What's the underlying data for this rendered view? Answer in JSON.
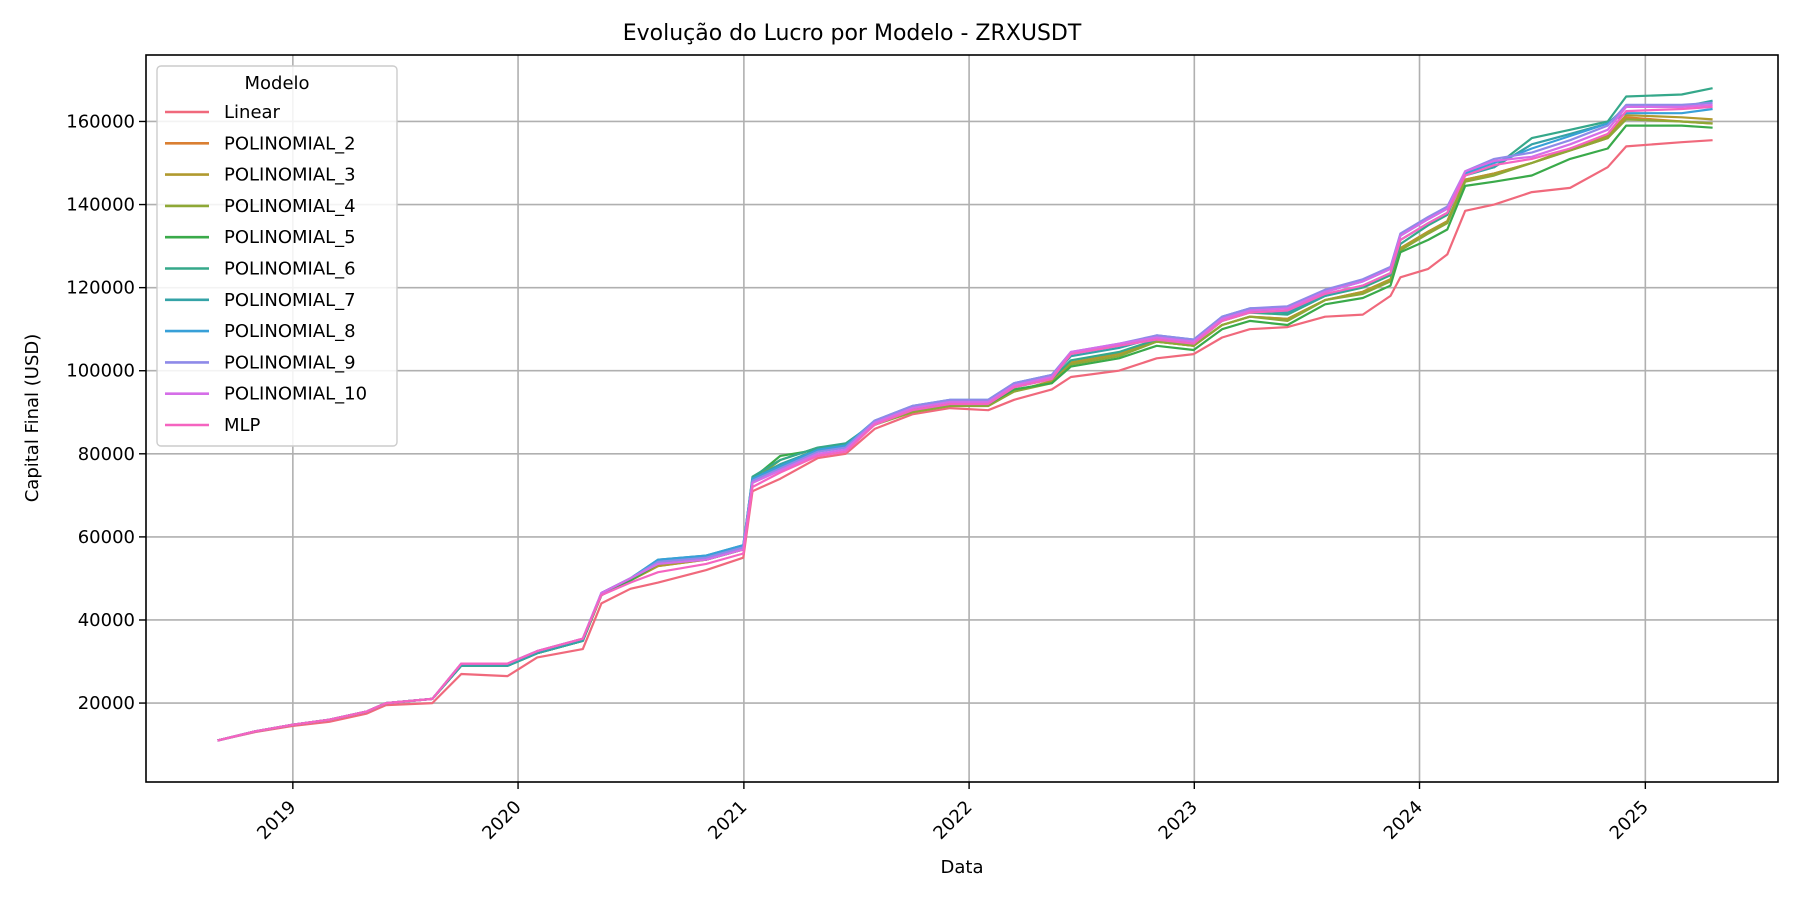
{
  "chart_data": {
    "type": "line",
    "title": "Evolução do Lucro por Modelo - ZRXUSDT",
    "xlabel": "Data",
    "ylabel": "Capital Final (USD)",
    "legend_title": "Modelo",
    "legend_position": "top-left",
    "grid": true,
    "ylim": [
      1000,
      176000
    ],
    "xlim": [
      "2018-05-08",
      "2025-08-04"
    ],
    "x_ticks": [
      "2019",
      "2020",
      "2021",
      "2022",
      "2023",
      "2024",
      "2025"
    ],
    "y_ticks": [
      20000,
      40000,
      60000,
      80000,
      100000,
      120000,
      140000,
      160000
    ],
    "x": [
      "2018-09-01",
      "2018-11-01",
      "2019-01-01",
      "2019-03-01",
      "2019-05-01",
      "2019-06-01",
      "2019-08-15",
      "2019-10-01",
      "2019-12-15",
      "2020-02-01",
      "2020-04-15",
      "2020-05-15",
      "2020-07-01",
      "2020-08-15",
      "2020-11-01",
      "2020-12-31",
      "2021-01-15",
      "2021-03-01",
      "2021-05-01",
      "2021-06-15",
      "2021-08-01",
      "2021-10-01",
      "2021-12-01",
      "2022-02-01",
      "2022-03-15",
      "2022-05-15",
      "2022-06-15",
      "2022-09-01",
      "2022-11-01",
      "2022-12-31",
      "2023-02-15",
      "2023-04-01",
      "2023-06-01",
      "2023-08-01",
      "2023-10-01",
      "2023-11-15",
      "2023-12-01",
      "2024-01-15",
      "2024-02-15",
      "2024-03-15",
      "2024-05-01",
      "2024-07-01",
      "2024-09-01",
      "2024-11-01",
      "2024-12-01",
      "2025-03-01",
      "2025-04-20"
    ],
    "series": [
      {
        "name": "Linear",
        "color": "#f0697c",
        "values": [
          11000,
          13000,
          14500,
          15500,
          17500,
          19500,
          20000,
          27000,
          26500,
          31000,
          33000,
          44000,
          47500,
          49000,
          52000,
          55000,
          71000,
          74000,
          79000,
          80000,
          86000,
          89500,
          91000,
          90500,
          93000,
          95500,
          98500,
          100000,
          103000,
          104000,
          108000,
          110000,
          110500,
          113000,
          113500,
          118000,
          122500,
          124500,
          128000,
          138500,
          140000,
          143000,
          144000,
          149000,
          154000,
          155000,
          155500
        ]
      },
      {
        "name": "POLINOMIAL_2",
        "color": "#da7f32",
        "values": [
          11000,
          13200,
          14800,
          16000,
          18000,
          20000,
          21000,
          29000,
          29000,
          32000,
          35000,
          46000,
          49500,
          53000,
          54500,
          57000,
          73000,
          77000,
          81000,
          82000,
          87000,
          90500,
          92000,
          92000,
          95000,
          97500,
          102000,
          104000,
          107000,
          106000,
          111000,
          113000,
          112500,
          117000,
          119000,
          122000,
          129500,
          133500,
          136000,
          146000,
          147500,
          150000,
          153000,
          156000,
          161000,
          160000,
          159500
        ]
      },
      {
        "name": "POLINOMIAL_3",
        "color": "#b09a2f",
        "values": [
          11000,
          13200,
          14800,
          16000,
          18000,
          20000,
          21000,
          29000,
          29000,
          32000,
          35000,
          46000,
          49500,
          53000,
          54500,
          57000,
          73000,
          77000,
          81000,
          82000,
          87000,
          90500,
          92000,
          92000,
          95000,
          97500,
          102000,
          104000,
          107000,
          106000,
          111000,
          113000,
          112500,
          117000,
          119000,
          122000,
          129500,
          133500,
          136000,
          146000,
          147500,
          150000,
          153500,
          156500,
          161500,
          161000,
          160500
        ]
      },
      {
        "name": "POLINOMIAL_4",
        "color": "#8ea836",
        "values": [
          11000,
          13200,
          14800,
          16000,
          18000,
          20000,
          21000,
          29000,
          29000,
          32000,
          35000,
          46000,
          49500,
          53500,
          54500,
          57000,
          73500,
          78500,
          81500,
          82000,
          87000,
          90000,
          91500,
          91500,
          95000,
          97000,
          101500,
          103500,
          107000,
          106000,
          111000,
          113000,
          112000,
          117000,
          118500,
          121500,
          129000,
          133000,
          135500,
          145500,
          147000,
          150000,
          153000,
          156000,
          160500,
          160000,
          159500
        ]
      },
      {
        "name": "POLINOMIAL_5",
        "color": "#3aaa4a",
        "values": [
          11000,
          13200,
          14800,
          16000,
          18000,
          20000,
          21000,
          29000,
          29000,
          32000,
          35000,
          46000,
          49500,
          53500,
          54500,
          57000,
          74000,
          79500,
          81000,
          82000,
          87000,
          90500,
          92000,
          92000,
          95500,
          97000,
          101000,
          103000,
          106000,
          105000,
          110000,
          112000,
          111000,
          116000,
          117500,
          120500,
          128500,
          131500,
          134000,
          144500,
          145500,
          147000,
          151000,
          153500,
          159000,
          159000,
          158500
        ]
      },
      {
        "name": "POLINOMIAL_6",
        "color": "#35a88a",
        "values": [
          11000,
          13200,
          14800,
          16000,
          18000,
          20000,
          21000,
          29000,
          29000,
          32000,
          35000,
          46500,
          50000,
          54000,
          55000,
          57500,
          74500,
          78500,
          81500,
          82500,
          87500,
          90500,
          92000,
          92000,
          96000,
          98000,
          102500,
          104500,
          107500,
          106500,
          112000,
          114000,
          113500,
          118000,
          120000,
          123000,
          130500,
          135000,
          137500,
          147500,
          149000,
          156000,
          158000,
          160000,
          166000,
          166500,
          168000
        ]
      },
      {
        "name": "POLINOMIAL_7",
        "color": "#34a3a7",
        "values": [
          11000,
          13200,
          14800,
          16000,
          18000,
          20000,
          21000,
          29000,
          29000,
          32000,
          35000,
          46500,
          50000,
          54500,
          55500,
          58000,
          74000,
          77500,
          81000,
          82000,
          87500,
          91000,
          92500,
          92500,
          96500,
          98500,
          103500,
          105500,
          108000,
          107000,
          112500,
          114500,
          114000,
          118000,
          120500,
          123500,
          131500,
          135500,
          138000,
          147000,
          149000,
          154500,
          157000,
          159500,
          163500,
          163500,
          165000
        ]
      },
      {
        "name": "POLINOMIAL_8",
        "color": "#38a0d8",
        "values": [
          11000,
          13200,
          14800,
          16000,
          18000,
          20000,
          21000,
          29500,
          29500,
          32500,
          35500,
          46500,
          50000,
          54500,
          55500,
          58000,
          74000,
          77000,
          81000,
          82000,
          88000,
          91500,
          93000,
          93000,
          97000,
          99000,
          104000,
          106000,
          108500,
          107500,
          113000,
          115000,
          115000,
          119000,
          121500,
          124500,
          132500,
          136500,
          139000,
          147500,
          150000,
          153500,
          156500,
          159500,
          162000,
          162000,
          163000
        ]
      },
      {
        "name": "POLINOMIAL_9",
        "color": "#8e8ae8",
        "values": [
          11000,
          13200,
          14800,
          16000,
          18000,
          20000,
          21000,
          29500,
          29500,
          32500,
          35500,
          46500,
          50000,
          54000,
          55000,
          57500,
          73500,
          76500,
          80500,
          81500,
          88000,
          91500,
          93000,
          93000,
          97000,
          99000,
          104500,
          106500,
          108500,
          107500,
          113000,
          115000,
          115500,
          119500,
          122000,
          125000,
          133000,
          137000,
          139500,
          148000,
          151000,
          152500,
          155500,
          159000,
          164000,
          164000,
          164500
        ]
      },
      {
        "name": "POLINOMIAL_10",
        "color": "#d56ee8",
        "values": [
          11000,
          13200,
          14800,
          16000,
          18000,
          20000,
          21000,
          29500,
          29500,
          32500,
          35500,
          46500,
          50000,
          53500,
          54500,
          57000,
          73000,
          76000,
          80000,
          81000,
          87500,
          91000,
          92500,
          92500,
          96500,
          98500,
          104500,
          106500,
          108000,
          107000,
          112500,
          114500,
          115000,
          119000,
          121500,
          124500,
          132500,
          136500,
          139000,
          148000,
          150500,
          151500,
          154500,
          158000,
          163500,
          163500,
          164000
        ]
      },
      {
        "name": "MLP",
        "color": "#f564c0",
        "values": [
          11000,
          13200,
          14800,
          16000,
          18000,
          20000,
          21000,
          29500,
          29500,
          32500,
          35500,
          46000,
          49000,
          51500,
          53500,
          56000,
          72000,
          75500,
          79500,
          80500,
          87000,
          90500,
          92000,
          92000,
          96000,
          98000,
          104000,
          106000,
          107500,
          106500,
          112000,
          114000,
          114500,
          118500,
          120500,
          123500,
          131500,
          135500,
          138000,
          147000,
          149500,
          151000,
          153500,
          157000,
          162500,
          163000,
          163500
        ]
      }
    ]
  }
}
